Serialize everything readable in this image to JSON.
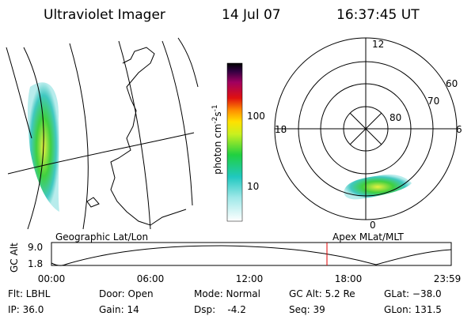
{
  "header": {
    "instrument": "Ultraviolet Imager",
    "date": "14 Jul 07",
    "time": "16:37:45 UT"
  },
  "colorbar": {
    "unit": "photon cm",
    "exp1": "-2",
    "unit2": "s",
    "exp2": "-1",
    "ticks": [
      "100",
      "10"
    ]
  },
  "polar": {
    "mlt_labels": [
      "12",
      "18",
      "6",
      "0"
    ],
    "mlat_labels": [
      "60",
      "70",
      "80"
    ]
  },
  "orbit": {
    "y_label": "GC Alt",
    "y_ticks": [
      "9.0",
      "1.8"
    ],
    "left_title": "Geographic Lat/Lon",
    "right_title": "Apex MLat/MLT",
    "x_ticks": [
      "00:00",
      "06:00",
      "12:00",
      "18:00",
      "23:59"
    ]
  },
  "footer": {
    "rows": [
      [
        "Flt: LBHL",
        "Door: Open",
        "Mode: Normal",
        "GC Alt: 5.2 Re",
        "GLat: −38.0"
      ],
      [
        "IP: 36.0",
        "Gain: 14",
        "Dsp:    -4.2",
        "Seq: 39",
        "GLon: 131.5"
      ]
    ]
  }
}
